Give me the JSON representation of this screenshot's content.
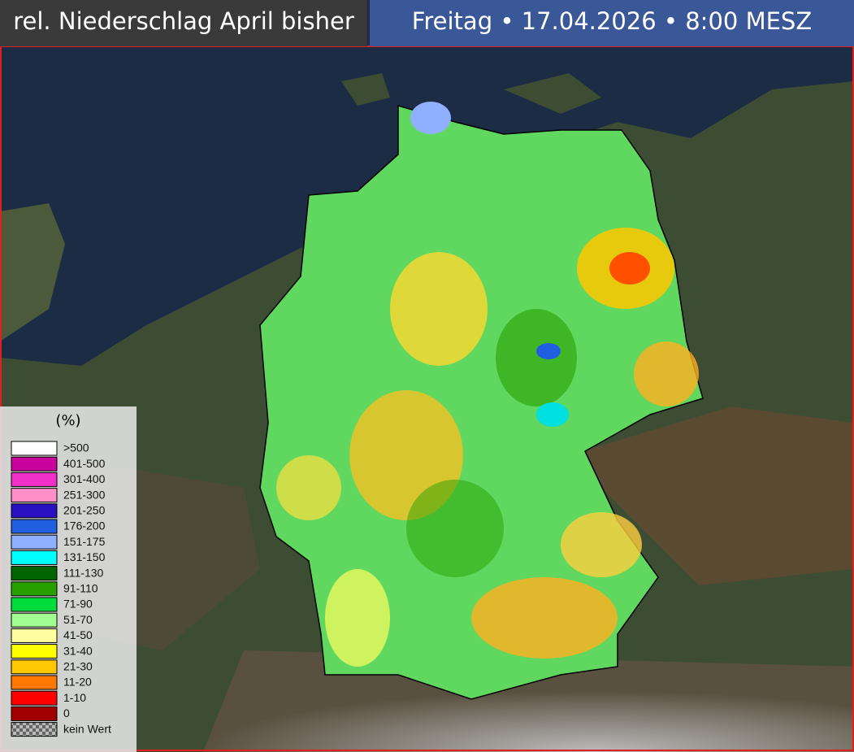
{
  "header": {
    "title": "rel. Niederschlag April bisher",
    "date": "Freitag • 17.04.2026 • 8:00 MESZ"
  },
  "legend": {
    "title": "(%)",
    "items": [
      {
        "label": ">500",
        "color": "#ffffff"
      },
      {
        "label": "401-500",
        "color": "#c8049c"
      },
      {
        "label": "301-400",
        "color": "#f030c8"
      },
      {
        "label": "251-300",
        "color": "#ff90c8"
      },
      {
        "label": "201-250",
        "color": "#2810c0"
      },
      {
        "label": "176-200",
        "color": "#2060e0"
      },
      {
        "label": "151-175",
        "color": "#90b0ff"
      },
      {
        "label": "131-150",
        "color": "#00ffff"
      },
      {
        "label": "111-130",
        "color": "#006400"
      },
      {
        "label": "91-110",
        "color": "#28a000"
      },
      {
        "label": "71-90",
        "color": "#00dc3c"
      },
      {
        "label": "51-70",
        "color": "#a0ff90"
      },
      {
        "label": "41-50",
        "color": "#ffffa0"
      },
      {
        "label": "31-40",
        "color": "#ffff00"
      },
      {
        "label": "21-30",
        "color": "#ffc800"
      },
      {
        "label": "11-20",
        "color": "#ff7800"
      },
      {
        "label": "1-10",
        "color": "#ff0000"
      },
      {
        "label": "0",
        "color": "#a00000"
      },
      {
        "label": "kein Wert"
      }
    ]
  }
}
